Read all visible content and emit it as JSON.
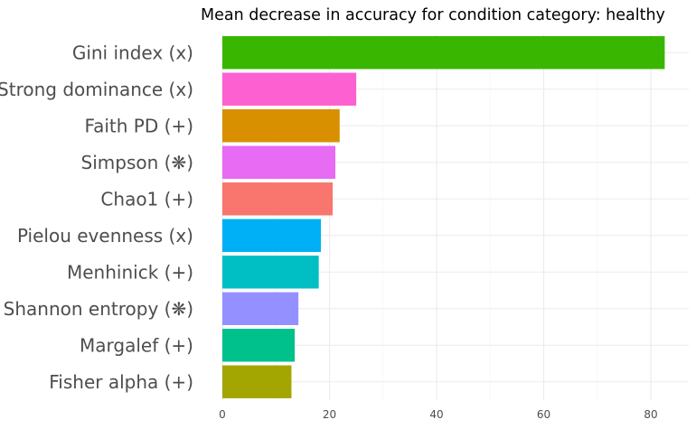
{
  "chart_data": {
    "type": "bar",
    "orientation": "horizontal",
    "title": "Mean decrease in accuracy for condition category: healthy",
    "xlabel": "",
    "ylabel": "",
    "xlim": [
      0,
      86
    ],
    "xticks": [
      0,
      20,
      40,
      60,
      80
    ],
    "grid": true,
    "legend": "none",
    "categories": [
      "Gini index (x)",
      "Strong dominance (x)",
      "Faith PD (+)",
      "Simpson (❋)",
      "Chao1 (+)",
      "Pielou evenness (x)",
      "Menhinick (+)",
      "Shannon entropy (❋)",
      "Margalef (+)",
      "Fisher alpha (+)"
    ],
    "values": [
      82.6,
      25.0,
      21.9,
      21.1,
      20.6,
      18.4,
      18.0,
      14.2,
      13.5,
      12.9
    ],
    "colors": [
      "#39b600",
      "#fd61d1",
      "#d89000",
      "#e76bf3",
      "#f8766d",
      "#00b0f6",
      "#00bfc4",
      "#9590ff",
      "#00c08b",
      "#a3a500"
    ]
  }
}
